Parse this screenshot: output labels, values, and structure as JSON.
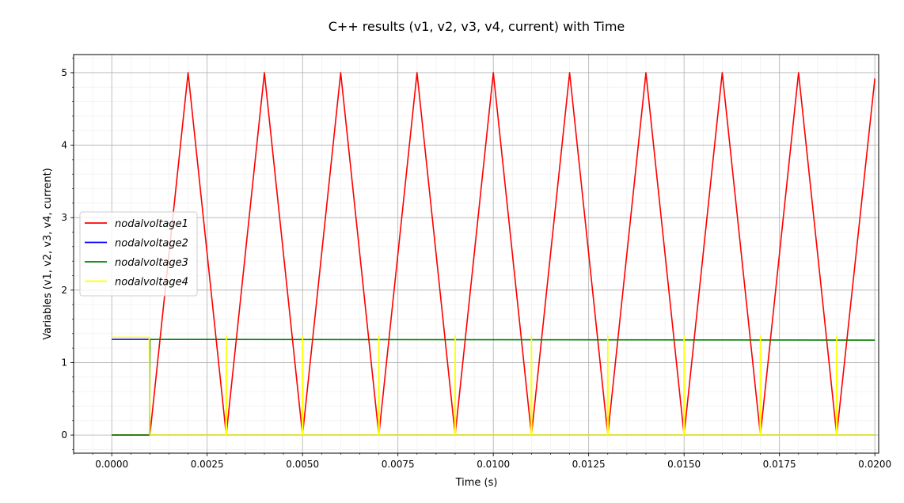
{
  "chart_data": {
    "type": "line",
    "title": "C++ results (v1, v2, v3, v4, current) with Time",
    "xlabel": "Time (s)",
    "ylabel": "Variables (v1, v2, v3, v4, current)",
    "xlim": [
      -0.001,
      0.0201
    ],
    "ylim": [
      -0.25,
      5.25
    ],
    "x_ticks": [
      0.0,
      0.0025,
      0.005,
      0.0075,
      0.01,
      0.0125,
      0.015,
      0.0175,
      0.02
    ],
    "x_tick_labels": [
      "0.0000",
      "0.0025",
      "0.0050",
      "0.0075",
      "0.0100",
      "0.0125",
      "0.0150",
      "0.0175",
      "0.0200"
    ],
    "y_ticks": [
      0,
      1,
      2,
      3,
      4,
      5
    ],
    "y_tick_labels": [
      "0",
      "1",
      "2",
      "3",
      "4",
      "5"
    ],
    "grid": "major and minor",
    "legend_position": "center-left",
    "series": [
      {
        "name": "nodalvoltage1",
        "color": "#ff0000",
        "points": [
          [
            0.0,
            0
          ],
          [
            0.001,
            0
          ],
          [
            0.002,
            5
          ],
          [
            0.003,
            0
          ],
          [
            0.004,
            5
          ],
          [
            0.005,
            0
          ],
          [
            0.006,
            5
          ],
          [
            0.007,
            0
          ],
          [
            0.008,
            5
          ],
          [
            0.009,
            0
          ],
          [
            0.01,
            5
          ],
          [
            0.011,
            0
          ],
          [
            0.012,
            5
          ],
          [
            0.013,
            0
          ],
          [
            0.014,
            5
          ],
          [
            0.015,
            0
          ],
          [
            0.016,
            5
          ],
          [
            0.017,
            0
          ],
          [
            0.018,
            5
          ],
          [
            0.019,
            0
          ],
          [
            0.02,
            4.92
          ]
        ]
      },
      {
        "name": "nodalvoltage2",
        "color": "#0000ff",
        "points": [
          [
            0.0,
            1.32
          ],
          [
            0.00099,
            1.32
          ],
          [
            0.001,
            0
          ],
          [
            0.02,
            0
          ]
        ]
      },
      {
        "name": "nodalvoltage3",
        "color": "#008000",
        "points": [
          [
            0.0,
            0
          ],
          [
            0.00099,
            0
          ],
          [
            0.001,
            1.32
          ],
          [
            0.02,
            1.31
          ]
        ]
      },
      {
        "name": "nodalvoltage4",
        "color": "#ffff00",
        "points": [
          [
            0.0,
            1.35
          ],
          [
            0.00098,
            1.35
          ],
          [
            0.001,
            0
          ],
          [
            0.00299,
            0
          ],
          [
            0.003,
            1.37
          ],
          [
            0.00301,
            0
          ],
          [
            0.00499,
            0
          ],
          [
            0.005,
            1.37
          ],
          [
            0.00501,
            0
          ],
          [
            0.00699,
            0
          ],
          [
            0.007,
            1.37
          ],
          [
            0.00701,
            0
          ],
          [
            0.00899,
            0
          ],
          [
            0.009,
            1.37
          ],
          [
            0.00901,
            0
          ],
          [
            0.01099,
            0
          ],
          [
            0.011,
            1.37
          ],
          [
            0.01101,
            0
          ],
          [
            0.01299,
            0
          ],
          [
            0.013,
            1.37
          ],
          [
            0.01301,
            0
          ],
          [
            0.01499,
            0
          ],
          [
            0.015,
            1.37
          ],
          [
            0.01501,
            0
          ],
          [
            0.01699,
            0
          ],
          [
            0.017,
            1.37
          ],
          [
            0.01701,
            0
          ],
          [
            0.01899,
            0
          ],
          [
            0.019,
            1.37
          ],
          [
            0.01901,
            0
          ],
          [
            0.02,
            0
          ]
        ]
      }
    ]
  }
}
